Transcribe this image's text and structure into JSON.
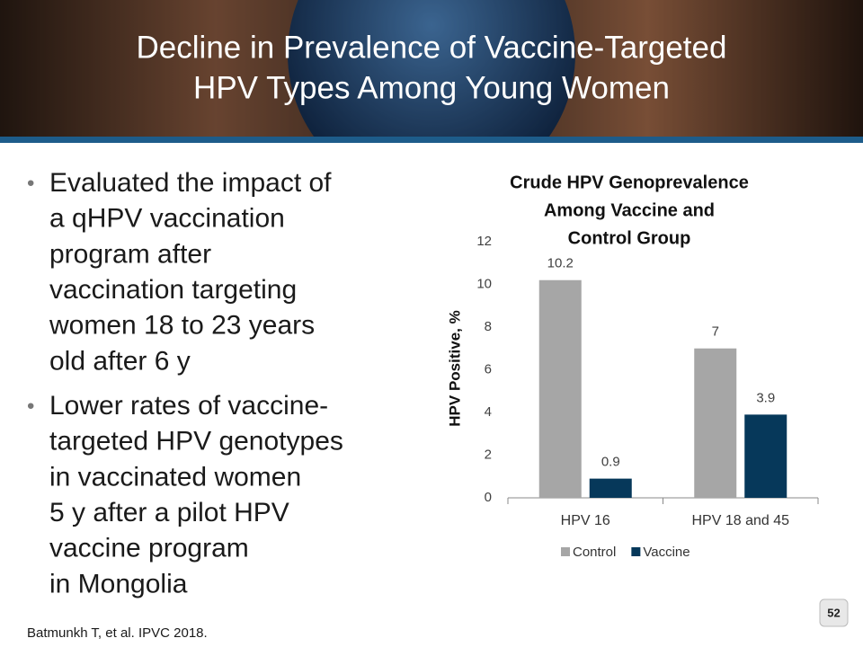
{
  "title": [
    "Decline in Prevalence of Vaccine-Targeted",
    "HPV Types Among Young Women"
  ],
  "bullets": [
    [
      "Evaluated the impact of",
      "a qHPV vaccination",
      "program after",
      "vaccination targeting",
      "women 18 to 23 years",
      "old after 6 y"
    ],
    [
      "Lower rates of vaccine-",
      "targeted HPV genotypes",
      "in vaccinated women",
      "5 y after a pilot HPV",
      "vaccine program",
      "in Mongolia"
    ]
  ],
  "footnote": "Batmunkh T, et al. IPVC 2018.",
  "page_number": "52",
  "chart_data": {
    "type": "bar",
    "title": [
      "Crude HPV Genoprevalence",
      "Among Vaccine and",
      "Control Group"
    ],
    "y_label": "HPV Positive, %",
    "categories": [
      "HPV 16",
      "HPV 18 and 45"
    ],
    "series": [
      {
        "name": "Control",
        "color": "#a6a6a6",
        "values": [
          10.2,
          7
        ]
      },
      {
        "name": "Vaccine",
        "color": "#06385a",
        "values": [
          0.9,
          3.9
        ]
      }
    ],
    "ylim": [
      0,
      12
    ],
    "yticks": [
      0,
      2,
      4,
      6,
      8,
      10,
      12
    ],
    "grid": false,
    "legend": "bottom"
  }
}
